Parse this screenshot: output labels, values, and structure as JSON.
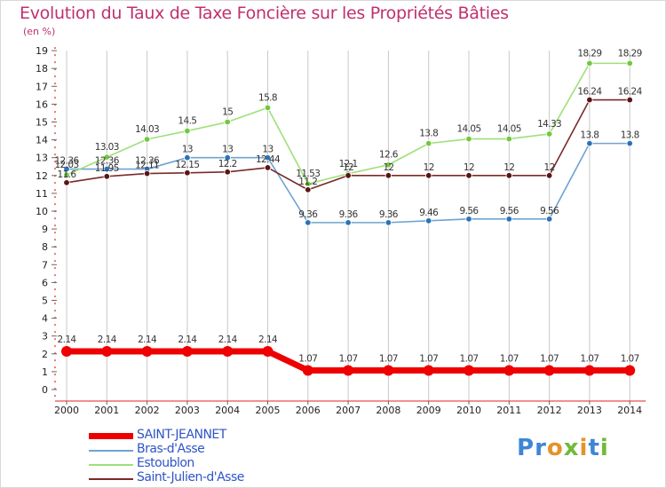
{
  "title": "Evolution du Taux de Taxe Foncière sur les Propriétés Bâties",
  "subtitle": "(en %)",
  "logo": {
    "parts": [
      {
        "text": "P",
        "color": "#3f86d6"
      },
      {
        "text": "r",
        "color": "#3f86d6"
      },
      {
        "text": "o",
        "color": "#e6922a"
      },
      {
        "text": "x",
        "color": "#6fba3a"
      },
      {
        "text": "i",
        "color": "#e6922a"
      },
      {
        "text": "t",
        "color": "#3f86d6"
      },
      {
        "text": "i",
        "color": "#6fba3a"
      }
    ]
  },
  "chart_data": {
    "type": "line",
    "title": "Evolution du Taux de Taxe Foncière sur les Propriétés Bâties",
    "ylabel": "(en %)",
    "xlabel": "",
    "ylim": [
      0,
      19
    ],
    "yticks": [
      "0",
      "1",
      "2",
      "3",
      "4",
      "5",
      "6",
      "7",
      "8",
      "9",
      "10",
      "11",
      "12",
      "13",
      "14",
      "15",
      "16",
      "17",
      "18",
      "19"
    ],
    "categories": [
      "2000",
      "2001",
      "2002",
      "2003",
      "2004",
      "2005",
      "2006",
      "2007",
      "2008",
      "2009",
      "2010",
      "2011",
      "2012",
      "2013",
      "2014"
    ],
    "legend_position": "bottom-left",
    "series": [
      {
        "name": "SAINT-JEANNET",
        "color": "#ee0000",
        "marker": "#ee0000",
        "values": [
          2.14,
          2.14,
          2.14,
          2.14,
          2.14,
          2.14,
          1.07,
          1.07,
          1.07,
          1.07,
          1.07,
          1.07,
          1.07,
          1.07,
          1.07
        ],
        "labels": [
          "2.14",
          "2.14",
          "2.14",
          "2.14",
          "2.14",
          "2.14",
          "1.07",
          "1.07",
          "1.07",
          "1.07",
          "1.07",
          "1.07",
          "1.07",
          "1.07",
          "1.07"
        ]
      },
      {
        "name": "Bras-d'Asse",
        "color": "#6fa3d1",
        "marker": "#2a73b8",
        "values": [
          12.36,
          12.36,
          12.36,
          13,
          13,
          13,
          9.36,
          9.36,
          9.36,
          9.46,
          9.56,
          9.56,
          9.56,
          13.8,
          13.8
        ],
        "labels": [
          "12.36",
          "12.36",
          "12.36",
          "13",
          "13",
          "13",
          "9.36",
          "9.36",
          "9.36",
          "9.46",
          "9.56",
          "9.56",
          "9.56",
          "13.8",
          "13.8"
        ]
      },
      {
        "name": "Estoublon",
        "color": "#9ee07a",
        "marker": "#72c83e",
        "values": [
          12.03,
          13.03,
          14.03,
          14.5,
          15,
          15.8,
          11.53,
          12.1,
          12.6,
          13.8,
          14.05,
          14.05,
          14.33,
          18.29,
          18.29
        ],
        "labels": [
          "12.03",
          "13.03",
          "14.03",
          "14.5",
          "15",
          "15.8",
          "11.53",
          "12.1",
          "12.6",
          "13.8",
          "14.05",
          "14.05",
          "14.33",
          "18.29",
          "18.29"
        ]
      },
      {
        "name": "Saint-Julien-d'Asse",
        "color": "#7a2a2a",
        "marker": "#5a1414",
        "values": [
          11.6,
          11.95,
          12.11,
          12.15,
          12.2,
          12.44,
          11.2,
          12,
          12,
          12,
          12,
          12,
          12,
          16.24,
          16.24
        ],
        "labels": [
          "11.6",
          "11.95",
          "12.11",
          "12.15",
          "12.2",
          "12.44",
          "11.2",
          "12",
          "12",
          "12",
          "12",
          "12",
          "12",
          "16.24",
          "16.24"
        ]
      }
    ]
  }
}
